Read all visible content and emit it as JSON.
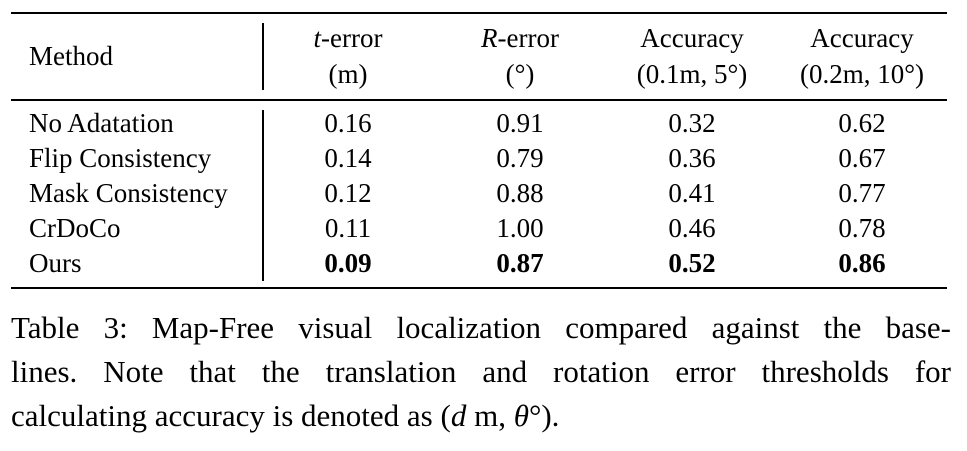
{
  "table": {
    "header": {
      "method": "Method",
      "t_error": {
        "var": "t",
        "label": "-error",
        "unit": "(m)"
      },
      "r_error": {
        "var": "R",
        "label": "-error",
        "unit": "(°)"
      },
      "acc1": {
        "label": "Accuracy",
        "unit": "(0.1m, 5°)"
      },
      "acc2": {
        "label": "Accuracy",
        "unit": "(0.2m, 10°)"
      }
    },
    "rows": [
      {
        "method": "No Adatation",
        "t": "0.16",
        "r": "0.91",
        "a1": "0.32",
        "a2": "0.62"
      },
      {
        "method": "Flip Consistency",
        "t": "0.14",
        "r": "0.79",
        "a1": "0.36",
        "a2": "0.67"
      },
      {
        "method": "Mask Consistency",
        "t": "0.12",
        "r": "0.88",
        "a1": "0.41",
        "a2": "0.77"
      },
      {
        "method": "CrDoCo",
        "t": "0.11",
        "r": "1.00",
        "a1": "0.46",
        "a2": "0.78"
      },
      {
        "method": "Ours",
        "t": "0.09",
        "r": "0.87",
        "a1": "0.52",
        "a2": "0.86"
      }
    ]
  },
  "caption": {
    "line1": "Table 3: Map-Free visual localization compared against the base-",
    "line2": "lines.  Note that the translation and rotation error thresholds for",
    "line3_text": "calculating accuracy is denoted as ",
    "line3_math_open": "(",
    "line3_math_d": "d",
    "line3_math_m": " m, ",
    "line3_math_theta": "θ",
    "line3_math_close": "°).",
    "line3_end": ""
  }
}
